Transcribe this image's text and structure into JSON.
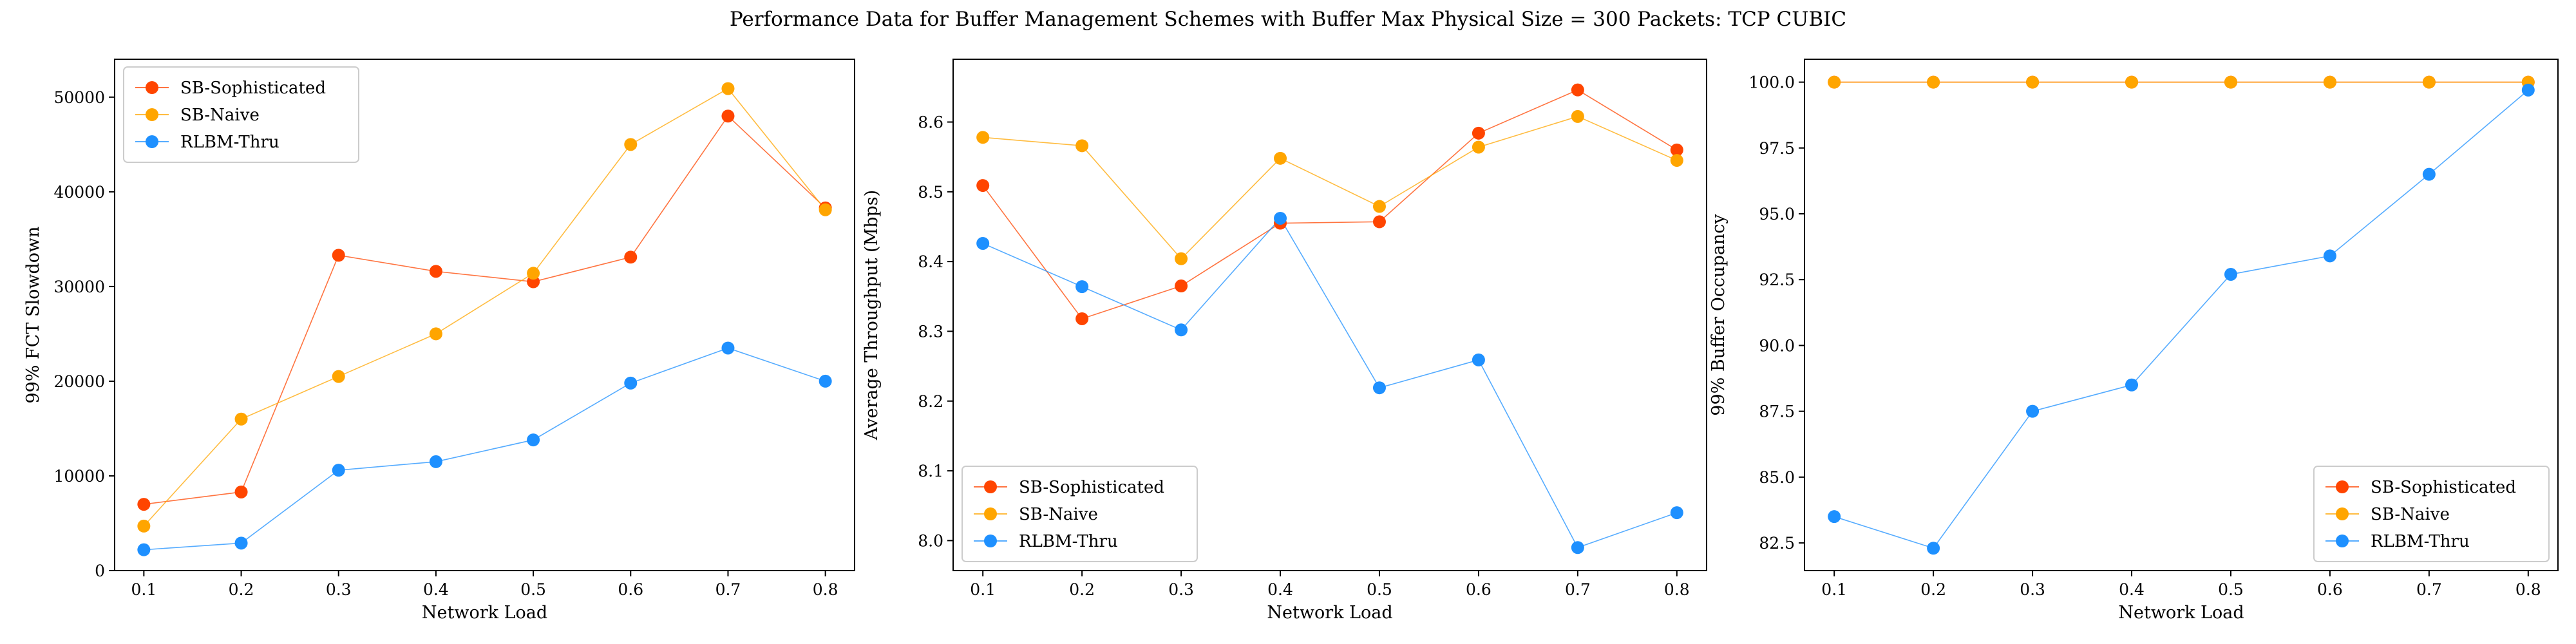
{
  "suptitle": "Performance Data for Buffer Management Schemes with Buffer Max Physical Size = 300 Packets: TCP CUBIC",
  "colors": {
    "sb_sophisticated": "#ff4500",
    "sb_naive": "#ffa500",
    "rlbm_thru": "#1e90ff"
  },
  "chart_data": [
    {
      "type": "line",
      "title": "",
      "xlabel": "Network Load",
      "ylabel": "99% FCT Slowdown",
      "x": [
        0.1,
        0.2,
        0.3,
        0.4,
        0.5,
        0.6,
        0.7,
        0.8
      ],
      "x_tick_labels": [
        "0.1",
        "0.2",
        "0.3",
        "0.4",
        "0.5",
        "0.6",
        "0.7",
        "0.8"
      ],
      "xlim": [
        0.07,
        0.83
      ],
      "ylim": [
        0,
        54000
      ],
      "y_ticks": [
        0,
        10000,
        20000,
        30000,
        40000,
        50000
      ],
      "y_tick_labels": [
        "0",
        "10000",
        "20000",
        "30000",
        "40000",
        "50000"
      ],
      "grid": false,
      "legend_position": "upper-left",
      "series": [
        {
          "name": "SB-Sophisticated",
          "color": "#ff4500",
          "values": [
            7000,
            8300,
            33300,
            31600,
            30500,
            33100,
            48000,
            38300
          ]
        },
        {
          "name": "SB-Naive",
          "color": "#ffa500",
          "values": [
            4700,
            16000,
            20500,
            25000,
            31400,
            45000,
            50900,
            38100
          ]
        },
        {
          "name": "RLBM-Thru",
          "color": "#1e90ff",
          "values": [
            2200,
            2900,
            10600,
            11500,
            13800,
            19800,
            23500,
            20000
          ]
        }
      ]
    },
    {
      "type": "line",
      "title": "",
      "xlabel": "Network Load",
      "ylabel": "Average Throughput (Mbps)",
      "x": [
        0.1,
        0.2,
        0.3,
        0.4,
        0.5,
        0.6,
        0.7,
        0.8
      ],
      "x_tick_labels": [
        "0.1",
        "0.2",
        "0.3",
        "0.4",
        "0.5",
        "0.6",
        "0.7",
        "0.8"
      ],
      "xlim": [
        0.07,
        0.83
      ],
      "ylim": [
        7.957,
        8.69
      ],
      "y_ticks": [
        8.0,
        8.1,
        8.2,
        8.3,
        8.4,
        8.5,
        8.6
      ],
      "y_tick_labels": [
        "8.0",
        "8.1",
        "8.2",
        "8.3",
        "8.4",
        "8.5",
        "8.6"
      ],
      "grid": false,
      "legend_position": "lower-left",
      "series": [
        {
          "name": "SB-Sophisticated",
          "color": "#ff4500",
          "values": [
            8.509,
            8.318,
            8.365,
            8.455,
            8.457,
            8.584,
            8.646,
            8.56
          ]
        },
        {
          "name": "SB-Naive",
          "color": "#ffa500",
          "values": [
            8.578,
            8.566,
            8.404,
            8.548,
            8.479,
            8.564,
            8.608,
            8.545
          ]
        },
        {
          "name": "RLBM-Thru",
          "color": "#1e90ff",
          "values": [
            8.426,
            8.364,
            8.302,
            8.462,
            8.219,
            8.259,
            7.99,
            8.04
          ]
        }
      ]
    },
    {
      "type": "line",
      "title": "",
      "xlabel": "Network Load",
      "ylabel": "99% Buffer Occupancy",
      "x": [
        0.1,
        0.2,
        0.3,
        0.4,
        0.5,
        0.6,
        0.7,
        0.8
      ],
      "x_tick_labels": [
        "0.1",
        "0.2",
        "0.3",
        "0.4",
        "0.5",
        "0.6",
        "0.7",
        "0.8"
      ],
      "xlim": [
        0.07,
        0.83
      ],
      "ylim": [
        81.45,
        100.87
      ],
      "y_ticks": [
        82.5,
        85.0,
        87.5,
        90.0,
        92.5,
        95.0,
        97.5,
        100.0
      ],
      "y_tick_labels": [
        "82.5",
        "85.0",
        "87.5",
        "90.0",
        "92.5",
        "95.0",
        "97.5",
        "100.0"
      ],
      "grid": false,
      "legend_position": "lower-right",
      "series": [
        {
          "name": "SB-Sophisticated",
          "color": "#ff4500",
          "values": [
            100.0,
            100.0,
            100.0,
            100.0,
            100.0,
            100.0,
            100.0,
            100.0
          ]
        },
        {
          "name": "SB-Naive",
          "color": "#ffa500",
          "values": [
            100.0,
            100.0,
            100.0,
            100.0,
            100.0,
            100.0,
            100.0,
            100.0
          ]
        },
        {
          "name": "RLBM-Thru",
          "color": "#1e90ff",
          "values": [
            83.5,
            82.3,
            87.5,
            88.5,
            92.7,
            93.4,
            96.5,
            99.7
          ]
        }
      ]
    }
  ]
}
